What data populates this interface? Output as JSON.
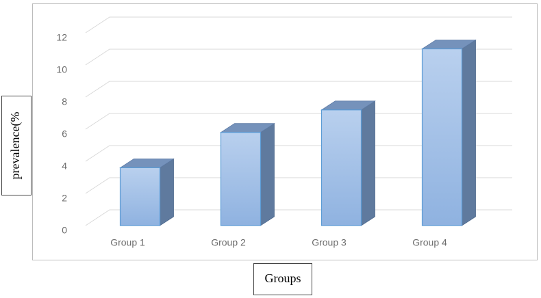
{
  "chart_data": {
    "type": "bar",
    "categories": [
      "Group 1",
      "Group 2",
      "Group 3",
      "Group 4"
    ],
    "values": [
      3.6,
      5.8,
      7.2,
      11.0
    ],
    "color": "#a4c2e8",
    "ylim": [
      0,
      12
    ],
    "yticks": [
      0,
      2,
      4,
      6,
      8,
      10,
      12
    ],
    "grid": true,
    "y_label": "prevalence(%",
    "x_label": "Groups"
  }
}
